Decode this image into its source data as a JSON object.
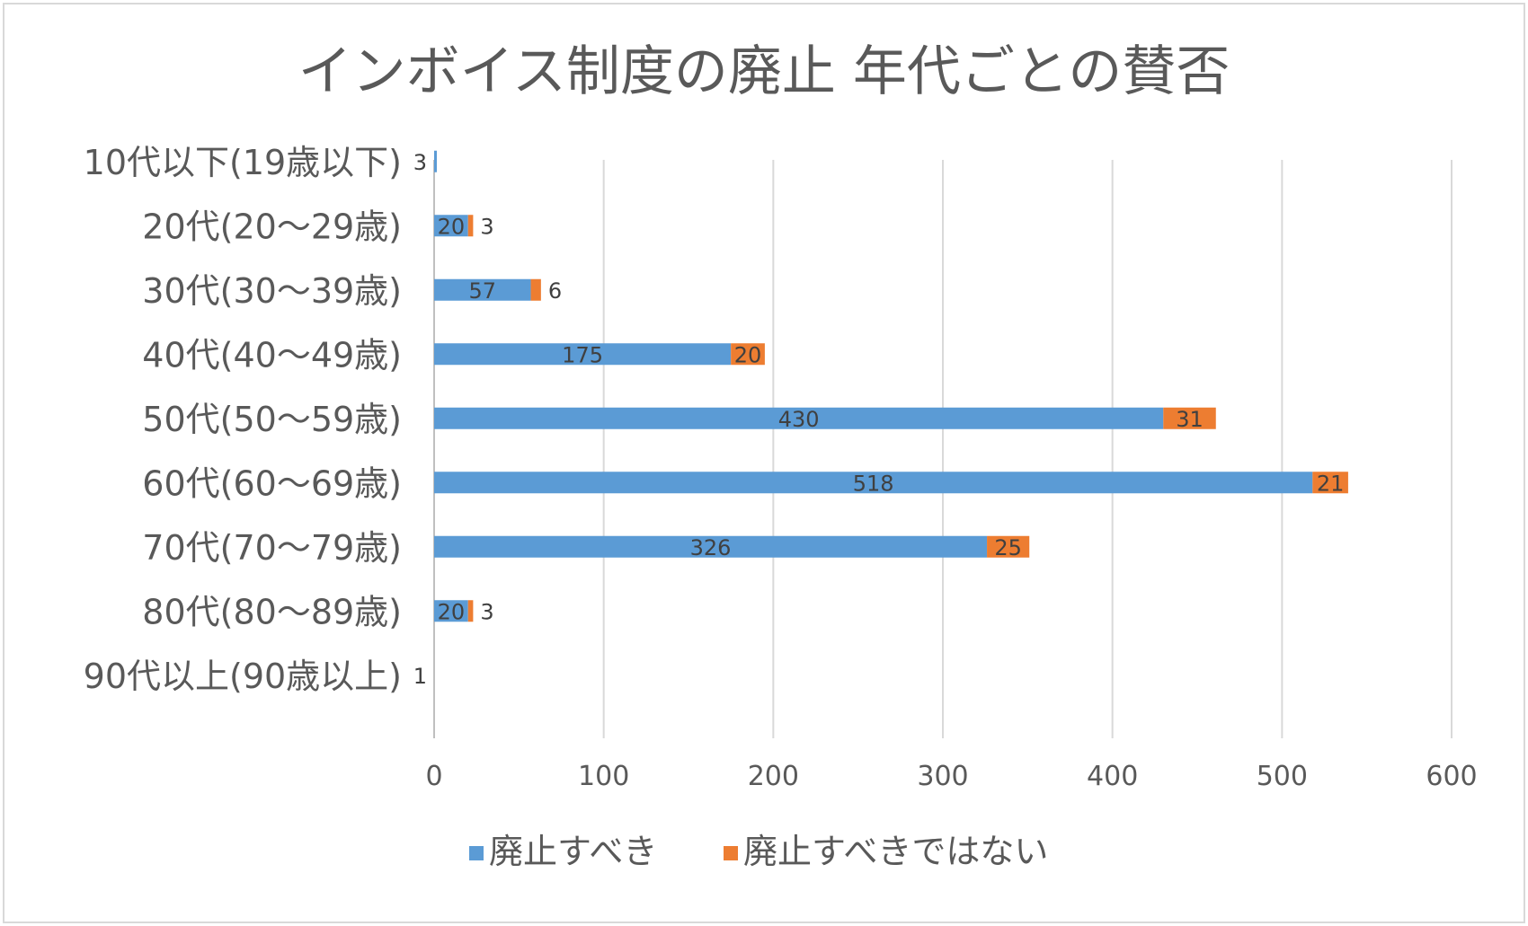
{
  "chart_data": {
    "type": "bar",
    "orientation": "horizontal",
    "stacked": true,
    "title": "インボイス制度の廃止 年代ごとの賛否",
    "categories": [
      "10代以下(19歳以下)",
      "20代(20～29歳)",
      "30代(30～39歳)",
      "40代(40～49歳)",
      "50代(50～59歳)",
      "60代(60～69歳)",
      "70代(70～79歳)",
      "80代(80～89歳)",
      "90代以上(90歳以上)"
    ],
    "series": [
      {
        "name": "廃止すべき",
        "color": "#5B9BD5",
        "values": [
          null,
          20,
          57,
          175,
          430,
          518,
          326,
          20,
          null
        ]
      },
      {
        "name": "廃止すべきではない",
        "color": "#ED7D31",
        "values": [
          null,
          3,
          6,
          20,
          31,
          21,
          25,
          3,
          null
        ]
      }
    ],
    "labels": [
      [
        null,
        "20",
        "57",
        "175",
        "430",
        "518",
        "326",
        "20",
        null
      ],
      [
        "3",
        "3",
        "6",
        "20",
        "31",
        "21",
        "25",
        "3",
        "1"
      ]
    ],
    "xlim": [
      0,
      600
    ],
    "xticks": [
      0,
      100,
      200,
      300,
      400,
      500,
      600
    ],
    "grid": true,
    "legend": "bottom",
    "xlabel": "",
    "ylabel": ""
  },
  "colors": {
    "grid": "#D9D9D9",
    "axis": "#BFBFBF",
    "text": "#595959"
  }
}
